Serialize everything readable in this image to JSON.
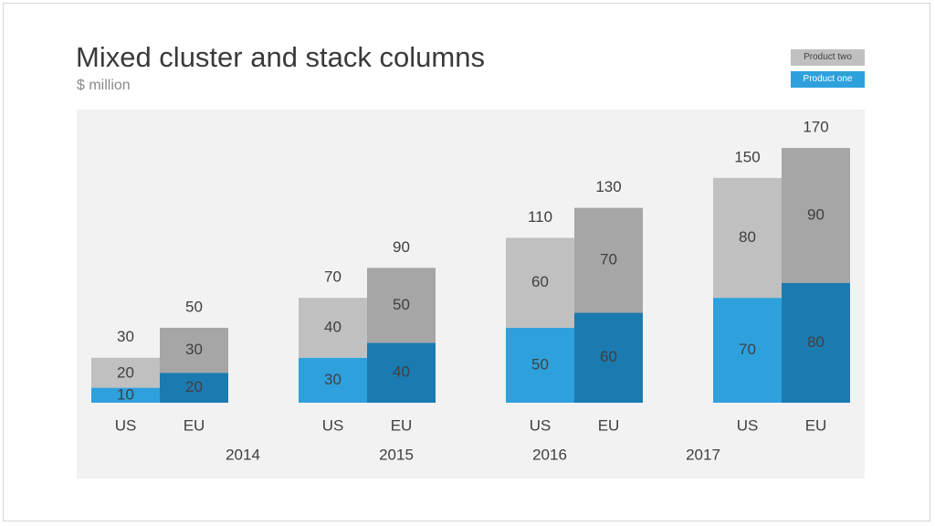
{
  "title": "Mixed cluster and stack columns",
  "subtitle": "$ million",
  "colors": {
    "plot_background": "#f2f2f2",
    "US": {
      "Product one": "#2ea1dd",
      "Product two": "#c0c0c0"
    },
    "EU": {
      "Product one": "#1b7bb0",
      "Product two": "#a6a6a6"
    },
    "legend": {
      "Product one": "#2ea1dd",
      "Product two": "#c0c0c0"
    }
  },
  "chart_data": {
    "type": "bar",
    "stacked": true,
    "clustered": true,
    "title": "Mixed cluster and stack columns",
    "subtitle": "$ million",
    "years": [
      "2014",
      "2015",
      "2016",
      "2017"
    ],
    "regions": [
      "US",
      "EU"
    ],
    "legend": {
      "items": [
        "Product two",
        "Product one"
      ],
      "placement": "top-right"
    },
    "ylim": [
      0,
      170
    ],
    "grid": false,
    "series": [
      {
        "name": "Product one",
        "values": {
          "2014": {
            "US": 10,
            "EU": 20
          },
          "2015": {
            "US": 30,
            "EU": 40
          },
          "2016": {
            "US": 50,
            "EU": 60
          },
          "2017": {
            "US": 70,
            "EU": 80
          }
        }
      },
      {
        "name": "Product two",
        "values": {
          "2014": {
            "US": 20,
            "EU": 30
          },
          "2015": {
            "US": 40,
            "EU": 50
          },
          "2016": {
            "US": 60,
            "EU": 70
          },
          "2017": {
            "US": 80,
            "EU": 90
          }
        }
      }
    ],
    "totals": {
      "2014": {
        "US": 30,
        "EU": 50
      },
      "2015": {
        "US": 70,
        "EU": 90
      },
      "2016": {
        "US": 110,
        "EU": 130
      },
      "2017": {
        "US": 150,
        "EU": 170
      }
    }
  }
}
